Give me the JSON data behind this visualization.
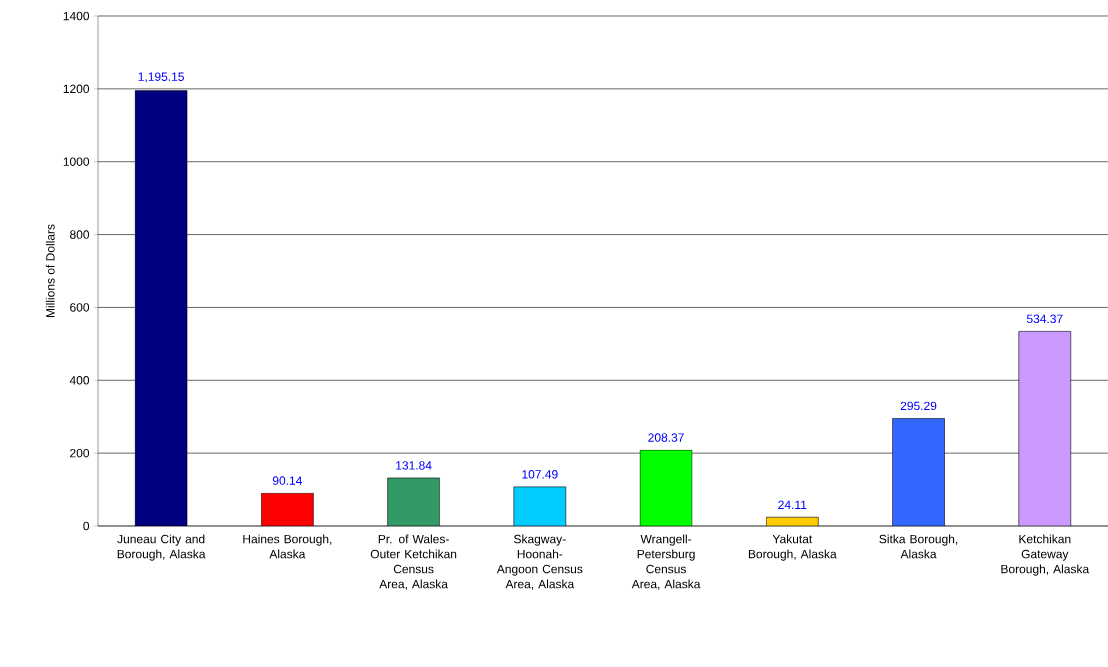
{
  "chart_data": {
    "type": "bar",
    "ylabel": "Millions of Dollars",
    "categories": [
      "Juneau City and Borough, Alaska",
      "Haines Borough, Alaska",
      "Pr. of Wales-Outer Ketchikan Census Area, Alaska",
      "Skagway-Hoonah-Angoon Census Area, Alaska",
      "Wrangell-Petersburg Census Area, Alaska",
      "Yakutat Borough, Alaska",
      "Sitka Borough, Alaska",
      "Ketchikan Gateway Borough, Alaska"
    ],
    "values": [
      1195.15,
      90.14,
      131.84,
      107.49,
      208.37,
      24.11,
      295.29,
      534.37
    ],
    "value_labels": [
      "1,195.15",
      "90.14",
      "131.84",
      "107.49",
      "208.37",
      "24.11",
      "295.29",
      "534.37"
    ],
    "colors": [
      "#000080",
      "#ff0000",
      "#339966",
      "#00ccff",
      "#00ff00",
      "#ffcc00",
      "#3366ff",
      "#cc99ff"
    ],
    "ylim": [
      0,
      1400
    ],
    "yticks": [
      0,
      200,
      400,
      600,
      800,
      1000,
      1200,
      1400
    ],
    "grid": "y"
  }
}
